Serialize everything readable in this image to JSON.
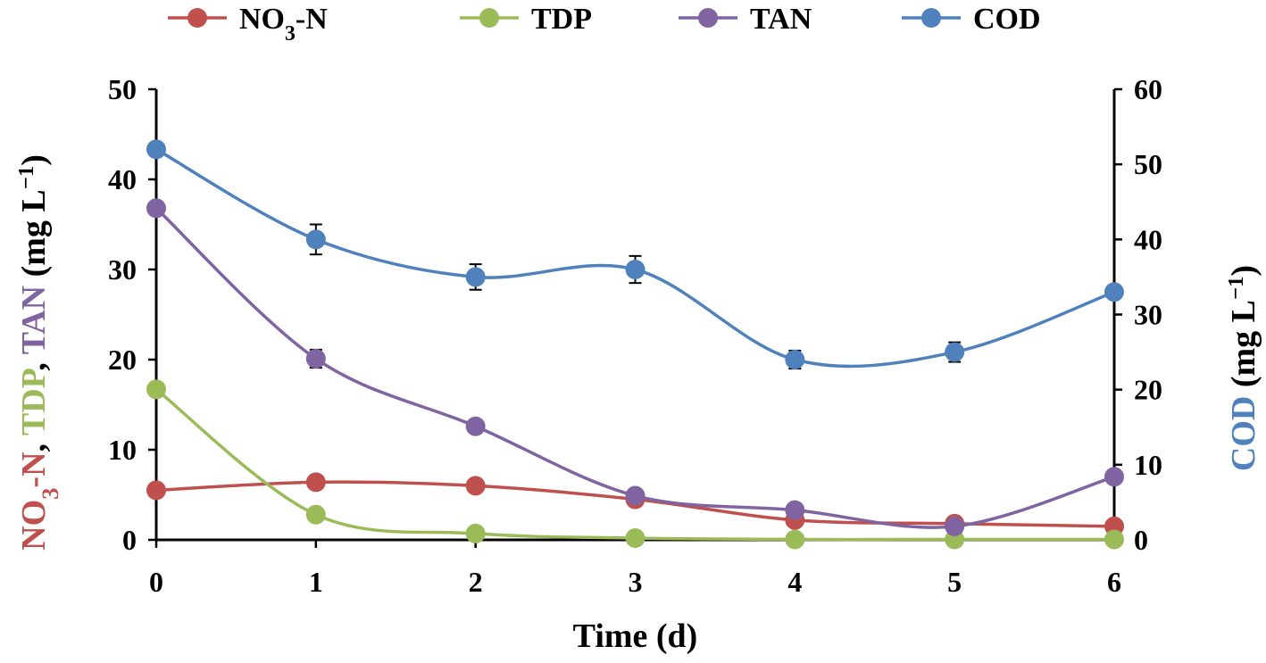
{
  "chart_data": {
    "type": "line",
    "title": "",
    "xlabel": "Time (d)",
    "x": [
      0,
      1,
      2,
      3,
      4,
      5,
      6
    ],
    "xlim": [
      0,
      6
    ],
    "left_axis": {
      "label_parts": [
        "NO",
        "3",
        "-N",
        ", ",
        "TDP",
        ", ",
        "TAN",
        " (mg L",
        "−1",
        ")"
      ],
      "ylim": [
        0,
        50
      ],
      "ticks": [
        0,
        10,
        20,
        30,
        40,
        50
      ]
    },
    "right_axis": {
      "label_parts": [
        "COD",
        " (mg L",
        "−1",
        ")"
      ],
      "ylim": [
        0,
        60
      ],
      "ticks": [
        0,
        10,
        20,
        30,
        40,
        50,
        60
      ]
    },
    "grid": false,
    "legend_position": "top",
    "series": [
      {
        "name": "NO3-N",
        "legend_parts": [
          "NO",
          "3",
          "-N"
        ],
        "axis": "left",
        "color": "#c0504d",
        "values": [
          5.5,
          6.4,
          6.0,
          4.5,
          2.2,
          1.8,
          1.5
        ],
        "errors": [
          0,
          0,
          0,
          0,
          0,
          0,
          0
        ]
      },
      {
        "name": "TDP",
        "legend_parts": [
          "TDP"
        ],
        "axis": "left",
        "color": "#9bbb59",
        "values": [
          16.7,
          2.8,
          0.7,
          0.2,
          0.05,
          0.05,
          0.05
        ],
        "errors": [
          0,
          0,
          0,
          0,
          0,
          0,
          0
        ]
      },
      {
        "name": "TAN",
        "legend_parts": [
          "TAN"
        ],
        "axis": "left",
        "color": "#8064a2",
        "values": [
          36.8,
          20.1,
          12.6,
          4.9,
          3.3,
          1.5,
          7.0
        ],
        "errors": [
          0,
          1.0,
          0,
          0,
          0,
          0,
          0
        ]
      },
      {
        "name": "COD",
        "legend_parts": [
          "COD"
        ],
        "axis": "right",
        "color": "#4f81bd",
        "values": [
          52.0,
          40.0,
          35.0,
          36.0,
          24.0,
          25.0,
          33.0
        ],
        "errors": [
          0,
          2.0,
          1.7,
          1.8,
          1.2,
          1.3,
          0
        ]
      }
    ]
  }
}
